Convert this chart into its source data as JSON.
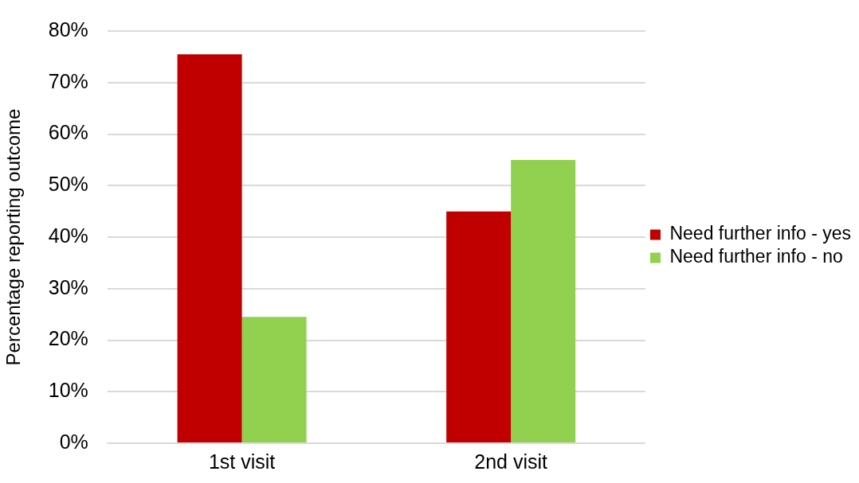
{
  "chart_data": {
    "type": "bar",
    "ylabel": "Percentage reporting outcome",
    "categories": [
      "1st visit",
      "2nd visit"
    ],
    "series": [
      {
        "name": "Need further info - yes",
        "color": "#c00000",
        "values": [
          75.5,
          45
        ]
      },
      {
        "name": "Need further info - no",
        "color": "#92d050",
        "values": [
          24.5,
          55
        ]
      }
    ],
    "ylim": [
      0,
      80
    ],
    "yticks": [
      {
        "value": 0,
        "label": "0%"
      },
      {
        "value": 10,
        "label": "10%"
      },
      {
        "value": 20,
        "label": "20%"
      },
      {
        "value": 30,
        "label": "30%"
      },
      {
        "value": 40,
        "label": "40%"
      },
      {
        "value": 50,
        "label": "50%"
      },
      {
        "value": 60,
        "label": "60%"
      },
      {
        "value": 70,
        "label": "70%"
      },
      {
        "value": 80,
        "label": "80%"
      }
    ],
    "grid": "y",
    "legend": "right"
  }
}
